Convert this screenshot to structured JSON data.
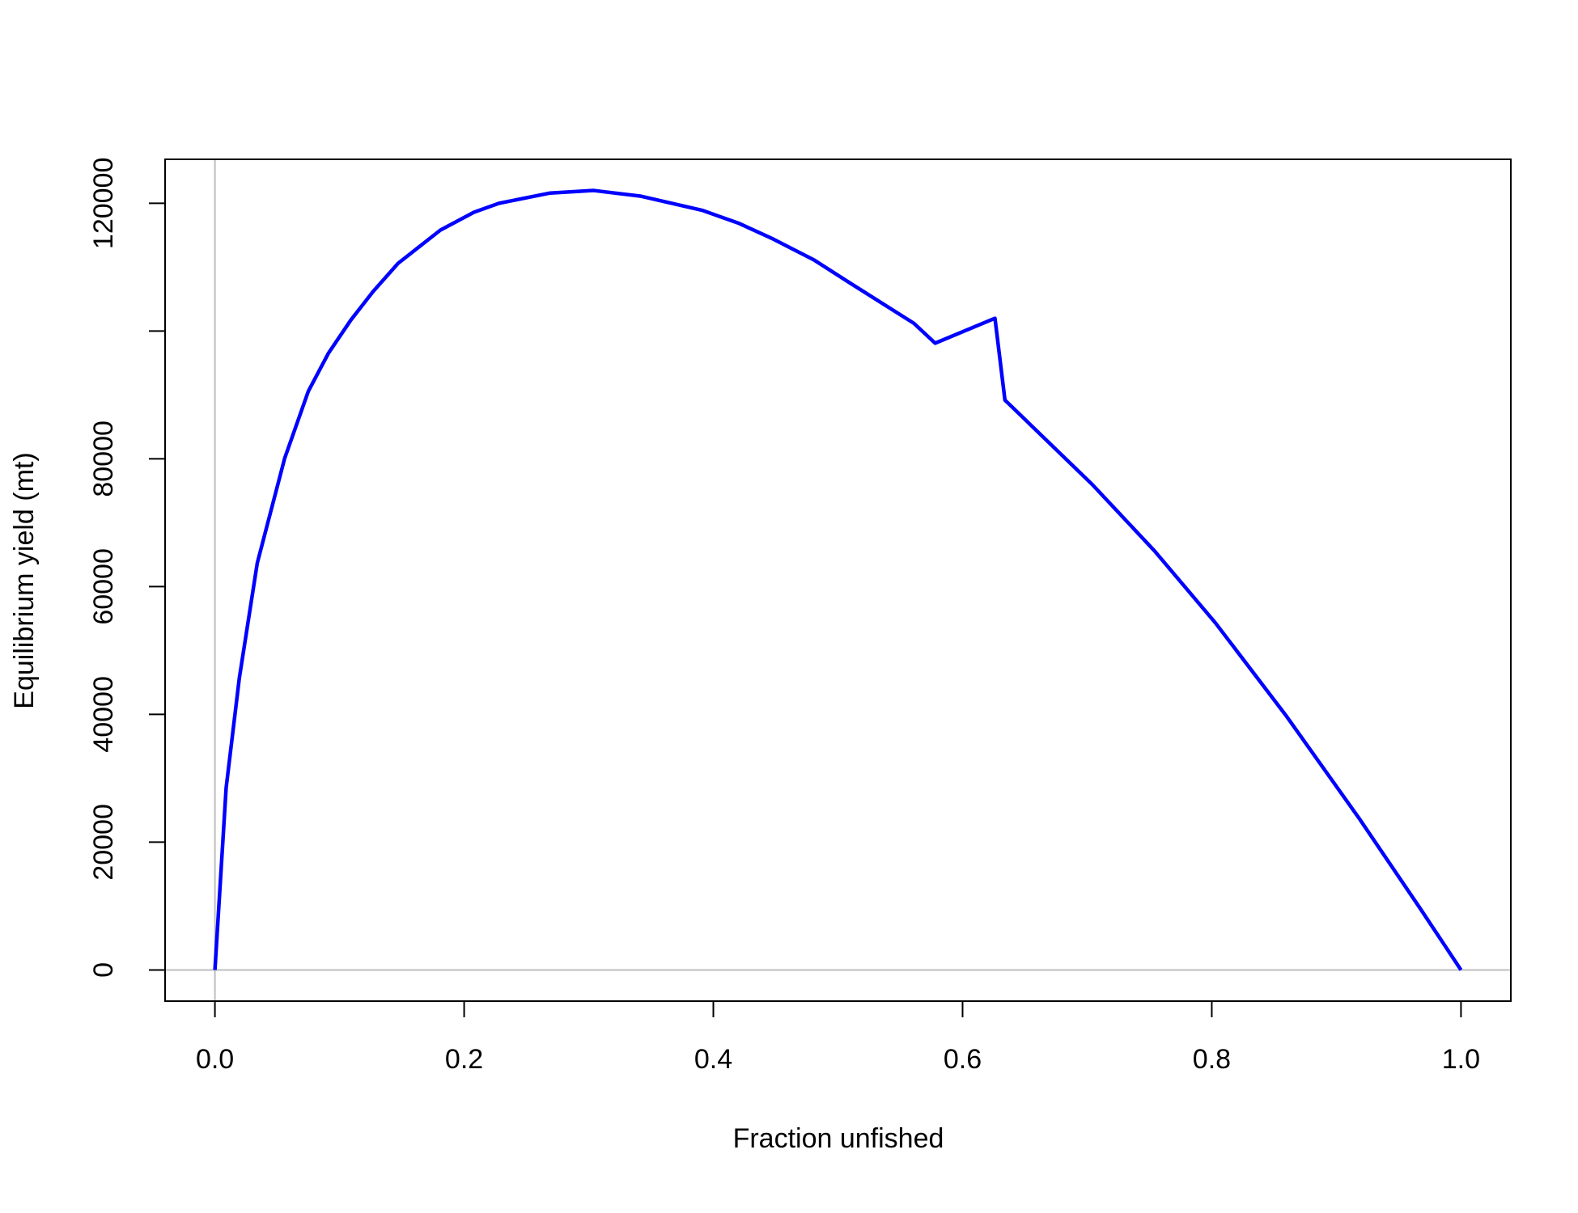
{
  "chart_data": {
    "type": "line",
    "xlabel": "Fraction unfished",
    "ylabel": "Equilibrium yield (mt)",
    "x": [
      0,
      0.009,
      0.0196,
      0.034,
      0.056,
      0.075,
      0.091,
      0.109,
      0.127,
      0.147,
      0.181,
      0.208,
      0.228,
      0.269,
      0.304,
      0.342,
      0.391,
      0.42,
      0.448,
      0.481,
      0.509,
      0.561,
      0.578,
      0.626,
      0.634,
      0.704,
      0.754,
      0.803,
      0.86,
      0.918,
      0.967,
      1.0
    ],
    "series": [
      {
        "color": "#0000ff",
        "values": [
          0,
          28500,
          45700,
          63700,
          80100,
          90600,
          96500,
          101700,
          106200,
          110600,
          115800,
          118600,
          120000,
          121600,
          122000,
          121100,
          118900,
          116900,
          114400,
          111100,
          107600,
          101200,
          98100,
          102000,
          89200,
          76000,
          65600,
          54300,
          39700,
          23800,
          9700,
          0
        ]
      }
    ],
    "xlim": [
      -0.04,
      1.04
    ],
    "ylim": [
      -4880,
      126880
    ],
    "xticks": [
      {
        "value": 0,
        "label": "0.0"
      },
      0.2,
      0.4,
      0.6,
      0.8,
      {
        "value": 1,
        "label": "1.0"
      }
    ],
    "yticks": [
      0,
      20000,
      40000,
      60000,
      80000,
      {
        "value": 100000,
        "label": null
      },
      120000
    ],
    "hlines": [
      0
    ],
    "vlines": [
      0
    ],
    "refline_color": "#bebebe"
  }
}
